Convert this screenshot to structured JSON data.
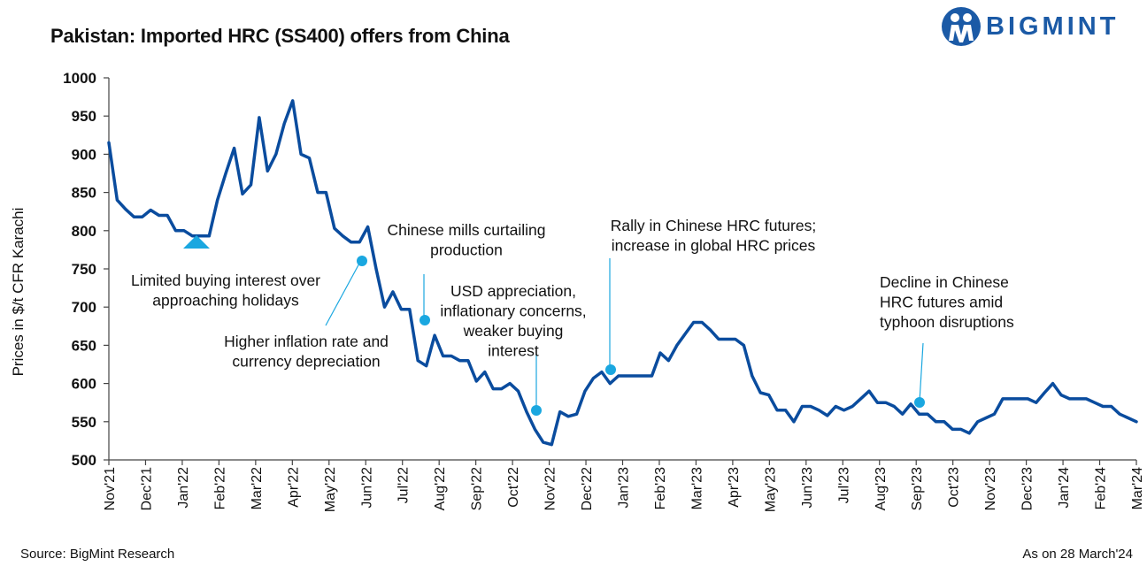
{
  "header": {
    "title": "Pakistan: Imported HRC (SS400) offers from China"
  },
  "logo": {
    "text": "BIGMINT",
    "color": "#1b5aa6"
  },
  "footer": {
    "source": "Source: BigMint Research",
    "asof": "As on 28 March'24"
  },
  "colors": {
    "line": "#0a4c9e",
    "marker": "#1aa7e0",
    "axis": "#444444"
  },
  "chart_data": {
    "type": "line",
    "title": "Pakistan: Imported HRC (SS400) offers from China",
    "ylabel": "Prices in $/t CFR Karachi",
    "xlabel": "",
    "ylim": [
      500,
      1000
    ],
    "yticks": [
      500,
      550,
      600,
      650,
      700,
      750,
      800,
      850,
      900,
      950,
      1000
    ],
    "xticks": [
      "Nov'21",
      "Dec'21",
      "Jan'22",
      "Feb'22",
      "Mar'22",
      "Apr'22",
      "May'22",
      "Jun'22",
      "Jul'22",
      "Aug'22",
      "Sep'22",
      "Oct'22",
      "Nov'22",
      "Dec'22",
      "Jan'23",
      "Feb'23",
      "Mar'23",
      "Apr'23",
      "May'23",
      "Jun'23",
      "Jul'23",
      "Aug'23",
      "Sep'23",
      "Oct'23",
      "Nov'23",
      "Dec'23",
      "Jan'24",
      "Feb'24",
      "Mar'24"
    ],
    "grid": false,
    "series": [
      {
        "values": [
          915,
          840,
          828,
          818,
          818,
          827,
          820,
          820,
          800,
          800,
          793,
          793,
          793,
          840,
          875,
          908,
          848,
          860,
          948,
          878,
          900,
          940,
          970,
          900,
          895,
          850,
          850,
          803,
          793,
          785,
          785,
          805,
          750,
          700,
          720,
          697,
          697,
          630,
          623,
          663,
          636,
          636,
          630,
          630,
          603,
          615,
          593,
          593,
          600,
          590,
          563,
          540,
          523,
          520,
          563,
          557,
          560,
          590,
          607,
          615,
          600,
          610,
          610,
          610,
          610,
          610,
          640,
          630,
          650,
          665,
          680,
          680,
          670,
          658,
          658,
          658,
          650,
          610,
          588,
          585,
          565,
          565,
          550,
          570,
          570,
          565,
          558,
          570,
          565,
          570,
          580,
          590,
          575,
          575,
          570,
          560,
          573,
          560,
          560,
          550,
          550,
          540,
          540,
          535,
          550,
          555,
          560,
          580,
          580,
          580,
          580,
          575,
          588,
          600,
          585,
          580,
          580,
          580,
          575,
          570,
          570,
          560,
          555,
          550
        ]
      }
    ],
    "annotations": [
      {
        "lines": [
          "Limited buying interest over",
          "approaching holidays"
        ]
      },
      {
        "lines": [
          "Higher inflation rate and",
          "currency depreciation"
        ]
      },
      {
        "lines": [
          "Chinese mills curtailing",
          "production"
        ]
      },
      {
        "lines": [
          "USD appreciation,",
          "inflationary concerns,",
          "weaker buying",
          "interest"
        ]
      },
      {
        "lines": [
          "Rally in Chinese HRC futures;",
          "increase in global HRC prices"
        ]
      },
      {
        "lines": [
          "Decline in Chinese",
          "HRC futures amid",
          "typhoon disruptions"
        ]
      }
    ]
  }
}
